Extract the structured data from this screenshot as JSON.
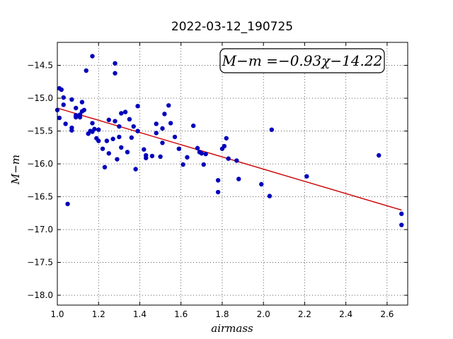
{
  "chart_data": {
    "type": "scatter",
    "title": "2022-03-12_190725",
    "xlabel": "airmass",
    "ylabel": "M−m",
    "xlim": [
      1.0,
      2.7
    ],
    "ylim": [
      -18.15,
      -14.15
    ],
    "y_inverted": true,
    "grid": true,
    "xticks": [
      1.0,
      1.2,
      1.4,
      1.6,
      1.8,
      2.0,
      2.2,
      2.4,
      2.6
    ],
    "xtick_labels": [
      "1.0",
      "1.2",
      "1.4",
      "1.6",
      "1.8",
      "2.0",
      "2.2",
      "2.4",
      "2.6"
    ],
    "yticks": [
      -14.5,
      -15.0,
      -15.5,
      -16.0,
      -16.5,
      -17.0,
      -17.5,
      -18.0
    ],
    "ytick_labels": [
      "−14.5",
      "−15.0",
      "−15.5",
      "−16.0",
      "−16.5",
      "−17.0",
      "−17.5",
      "−18.0"
    ],
    "annotation": "M−m =−0.93χ−14.22",
    "fit": {
      "slope": -0.93,
      "intercept": -14.22,
      "x_range": [
        1.0,
        2.67
      ],
      "color": "#cc0000"
    },
    "points_color": "#0000bb",
    "points": [
      [
        1.0,
        -15.18
      ],
      [
        1.01,
        -14.85
      ],
      [
        1.01,
        -15.3
      ],
      [
        1.02,
        -14.87
      ],
      [
        1.03,
        -14.99
      ],
      [
        1.03,
        -15.1
      ],
      [
        1.04,
        -15.39
      ],
      [
        1.05,
        -16.61
      ],
      [
        1.07,
        -15.45
      ],
      [
        1.07,
        -15.49
      ],
      [
        1.07,
        -15.02
      ],
      [
        1.09,
        -15.15
      ],
      [
        1.09,
        -15.26
      ],
      [
        1.09,
        -15.29
      ],
      [
        1.1,
        -15.27
      ],
      [
        1.11,
        -15.25
      ],
      [
        1.11,
        -15.29
      ],
      [
        1.12,
        -15.06
      ],
      [
        1.12,
        -15.2
      ],
      [
        1.13,
        -15.18
      ],
      [
        1.14,
        -14.58
      ],
      [
        1.15,
        -15.54
      ],
      [
        1.16,
        -15.5
      ],
      [
        1.17,
        -15.51
      ],
      [
        1.17,
        -15.38
      ],
      [
        1.17,
        -14.36
      ],
      [
        1.18,
        -15.47
      ],
      [
        1.19,
        -15.61
      ],
      [
        1.2,
        -15.48
      ],
      [
        1.2,
        -15.65
      ],
      [
        1.22,
        -15.77
      ],
      [
        1.23,
        -16.05
      ],
      [
        1.24,
        -15.65
      ],
      [
        1.25,
        -15.33
      ],
      [
        1.25,
        -15.84
      ],
      [
        1.27,
        -15.62
      ],
      [
        1.28,
        -15.35
      ],
      [
        1.28,
        -14.47
      ],
      [
        1.29,
        -15.93
      ],
      [
        1.28,
        -14.62
      ],
      [
        1.3,
        -15.43
      ],
      [
        1.3,
        -15.59
      ],
      [
        1.31,
        -15.23
      ],
      [
        1.31,
        -15.75
      ],
      [
        1.33,
        -15.21
      ],
      [
        1.34,
        -15.82
      ],
      [
        1.35,
        -15.32
      ],
      [
        1.36,
        -15.6
      ],
      [
        1.37,
        -15.43
      ],
      [
        1.38,
        -16.08
      ],
      [
        1.39,
        -15.5
      ],
      [
        1.39,
        -15.12
      ],
      [
        1.42,
        -15.78
      ],
      [
        1.43,
        -15.87
      ],
      [
        1.43,
        -15.91
      ],
      [
        1.46,
        -15.88
      ],
      [
        1.48,
        -15.39
      ],
      [
        1.48,
        -15.53
      ],
      [
        1.5,
        -15.89
      ],
      [
        1.51,
        -15.46
      ],
      [
        1.51,
        -15.68
      ],
      [
        1.52,
        -15.24
      ],
      [
        1.54,
        -15.11
      ],
      [
        1.55,
        -15.38
      ],
      [
        1.57,
        -15.59
      ],
      [
        1.59,
        -15.77
      ],
      [
        1.61,
        -16.01
      ],
      [
        1.63,
        -15.9
      ],
      [
        1.66,
        -15.42
      ],
      [
        1.68,
        -15.76
      ],
      [
        1.69,
        -15.82
      ],
      [
        1.7,
        -15.84
      ],
      [
        1.71,
        -16.01
      ],
      [
        1.72,
        -15.85
      ],
      [
        1.78,
        -16.25
      ],
      [
        1.78,
        -16.43
      ],
      [
        1.8,
        -15.77
      ],
      [
        1.81,
        -15.73
      ],
      [
        1.82,
        -15.61
      ],
      [
        1.83,
        -15.92
      ],
      [
        1.87,
        -15.95
      ],
      [
        1.88,
        -16.23
      ],
      [
        1.99,
        -16.31
      ],
      [
        2.03,
        -16.49
      ],
      [
        2.04,
        -15.48
      ],
      [
        2.21,
        -16.19
      ],
      [
        2.56,
        -15.87
      ],
      [
        2.67,
        -16.76
      ],
      [
        2.67,
        -16.93
      ]
    ]
  }
}
